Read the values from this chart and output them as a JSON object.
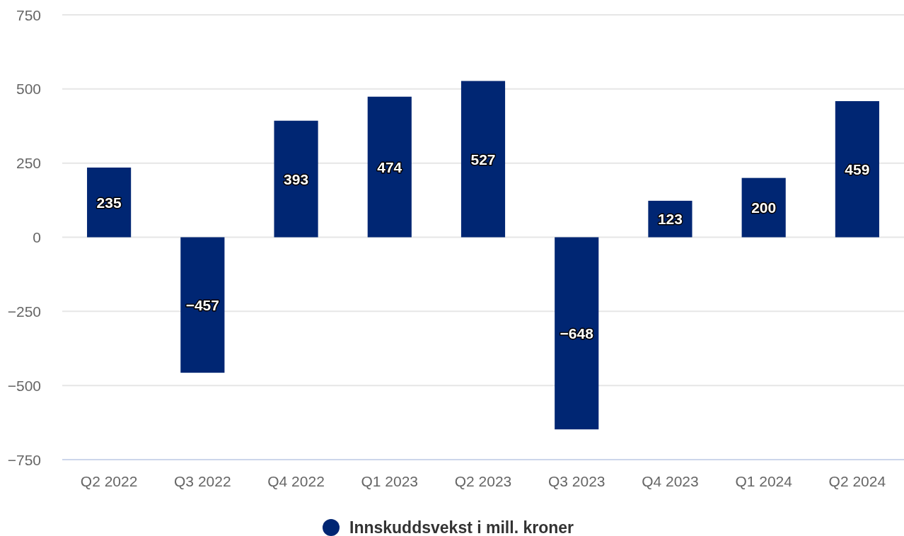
{
  "chart_data": {
    "type": "bar",
    "categories": [
      "Q2 2022",
      "Q3 2022",
      "Q4 2022",
      "Q1 2023",
      "Q2 2023",
      "Q3 2023",
      "Q4 2023",
      "Q1 2024",
      "Q2 2024"
    ],
    "series": [
      {
        "name": "Innskuddsvekst i mill. kroner",
        "color": "#002673",
        "values": [
          235,
          -457,
          393,
          474,
          527,
          -648,
          123,
          200,
          459
        ],
        "value_labels": [
          "235",
          "−457",
          "393",
          "474",
          "527",
          "−648",
          "123",
          "200",
          "459"
        ]
      }
    ],
    "ylim": [
      -750,
      750
    ],
    "yticks": [
      {
        "value": -750,
        "label": "−750"
      },
      {
        "value": -500,
        "label": "−500"
      },
      {
        "value": -250,
        "label": "−250"
      },
      0,
      250,
      500,
      750
    ],
    "grid": "y",
    "legend": "bottom",
    "marker": "circle"
  }
}
